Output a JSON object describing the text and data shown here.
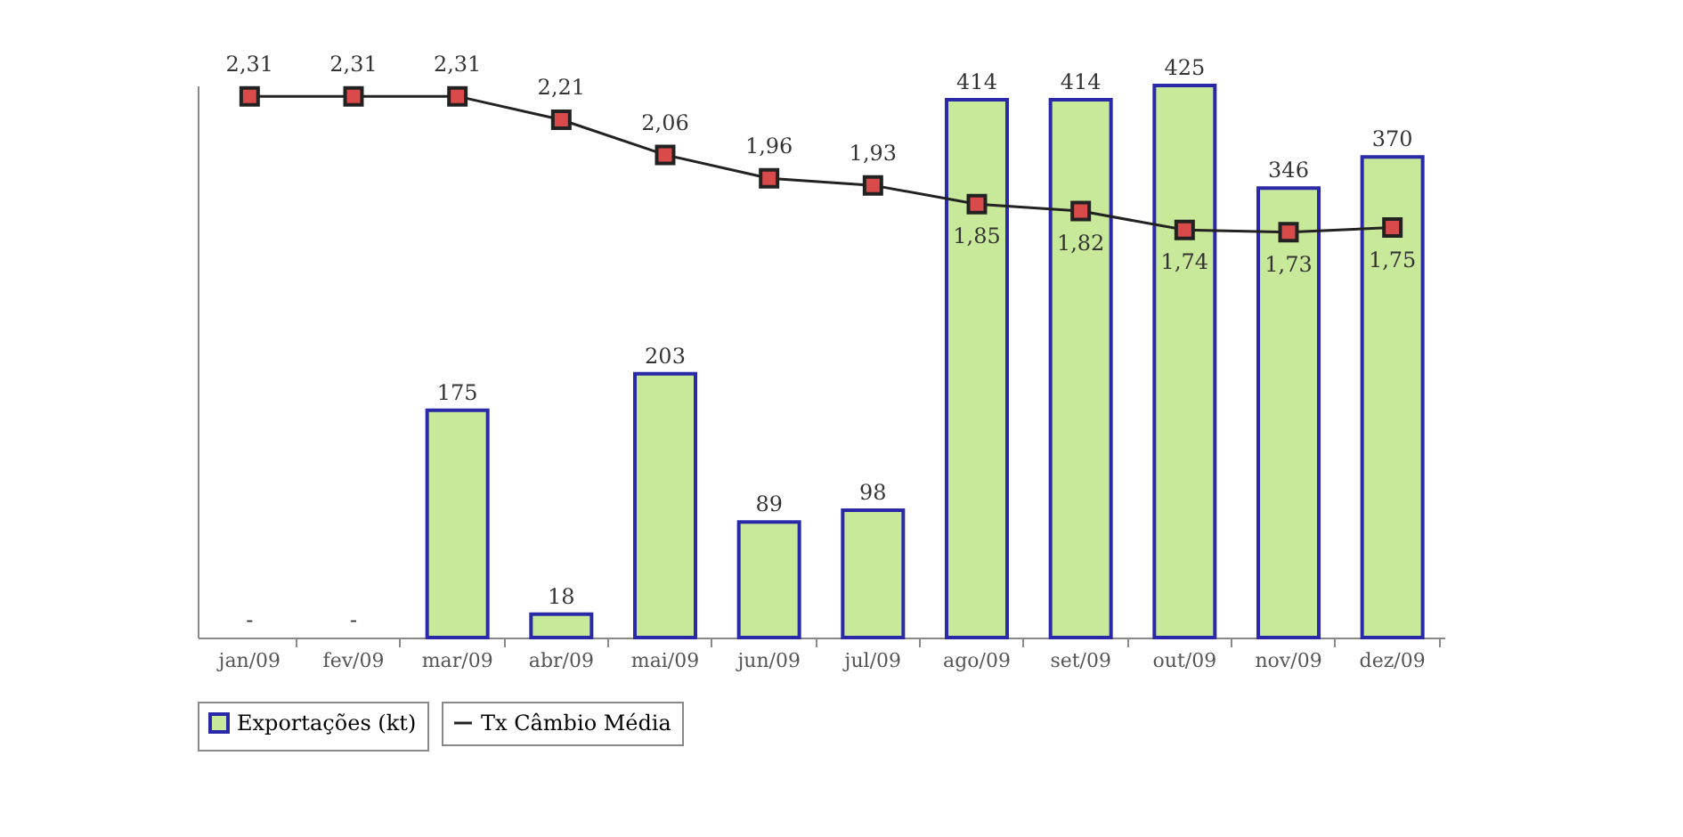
{
  "chart_data": {
    "type": "bar",
    "categories": [
      "jan/09",
      "fev/09",
      "mar/09",
      "abr/09",
      "mai/09",
      "jun/09",
      "jul/09",
      "ago/09",
      "set/09",
      "out/09",
      "nov/09",
      "dez/09"
    ],
    "series": [
      {
        "name": "Exportações (kt)",
        "color": "#c8e89a",
        "values": [
          0,
          0,
          175,
          18,
          203,
          89,
          98,
          414,
          414,
          425,
          346,
          370
        ],
        "value_labels": [
          "-",
          "-",
          "175",
          "18",
          "203",
          "89",
          "98",
          "414",
          "414",
          "425",
          "346",
          "370"
        ]
      },
      {
        "name": "Tx Câmbio Média",
        "type": "line",
        "axis": "y2",
        "color": "#222222",
        "values": [
          2.31,
          2.31,
          2.31,
          2.21,
          2.06,
          1.96,
          1.93,
          1.85,
          1.82,
          1.74,
          1.73,
          1.75
        ],
        "value_labels": [
          "2,31",
          "2,31",
          "2,31",
          "2,21",
          "2,06",
          "1,96",
          "1,93",
          "1,85",
          "1,82",
          "1,74",
          "1,73",
          "1,75"
        ]
      }
    ],
    "marker": "square",
    "legend": "bottom",
    "tick_labels": "x"
  }
}
